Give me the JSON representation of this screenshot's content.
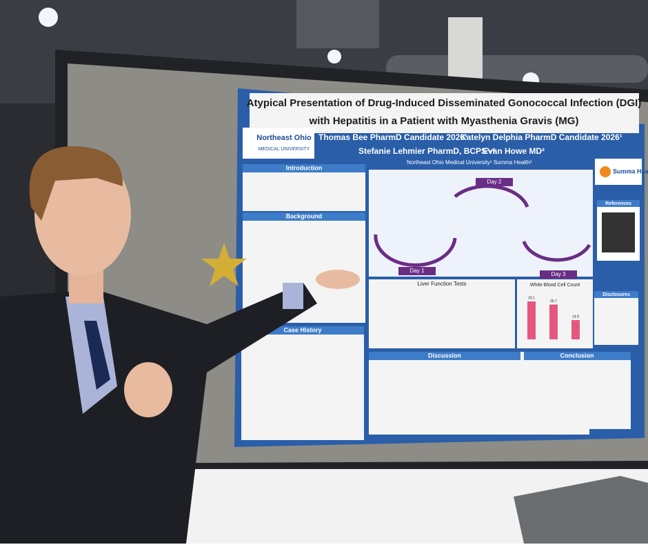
{
  "poster": {
    "title": "Atypical Presentation of Drug-Induced Disseminated Gonococcal Infection (DGI) with Hepatitis in a Patient with Myasthenia Gravis (MG)",
    "logo": {
      "name": "Northeast Ohio",
      "subtitle": "MEDICAL UNIVERSITY"
    },
    "authors": [
      "Thomas Bee PharmD Candidate 2026¹",
      "Katelyn Delphia PharmD Candidate 2026¹",
      "Stefanie Lehmier PharmD, BCPS¹·²",
      "Evan Howe MD²"
    ],
    "affiliation": "Northeast Ohio Medical University¹ Summa Health²",
    "sponsor": "Summa Health.",
    "sections": {
      "introduction": "Introduction",
      "background": "Background",
      "case_history": "Case History",
      "discussion": "Discussion",
      "conclusion": "Conclusion",
      "references": "References",
      "disclosures": "Disclosures"
    },
    "timeline": {
      "day1": "Day 1",
      "day2": "Day 2",
      "day3": "Day 3"
    },
    "charts": {
      "lft": {
        "title": "Liver Function Tests"
      },
      "wbc": {
        "title": "White Blood Cell Count",
        "values": [
          29.1,
          26.7,
          14.8
        ],
        "color": "#e4587f"
      }
    }
  }
}
